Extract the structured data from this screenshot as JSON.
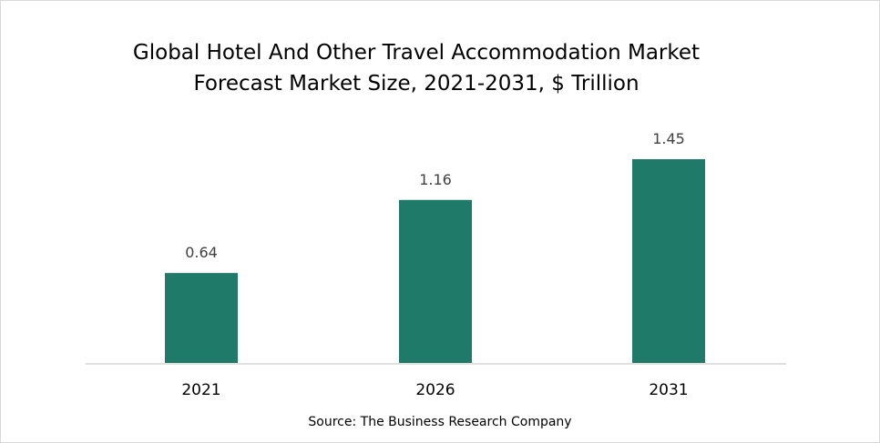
{
  "chart_data": {
    "type": "bar",
    "title": "Global Hotel And Other Travel Accommodation Market",
    "subtitle": "Forecast Market Size, 2021-2031, $ Trillion",
    "categories": [
      "2021",
      "2026",
      "2031"
    ],
    "values": [
      0.64,
      1.16,
      1.45
    ],
    "data_labels": [
      "0.64",
      "1.16",
      "1.45"
    ],
    "xlabel": "",
    "ylabel": "",
    "ylim": [
      0,
      1.45
    ],
    "grid": false,
    "bar_color": "#1F7A6A",
    "source": "Source: The Business Research Company"
  }
}
